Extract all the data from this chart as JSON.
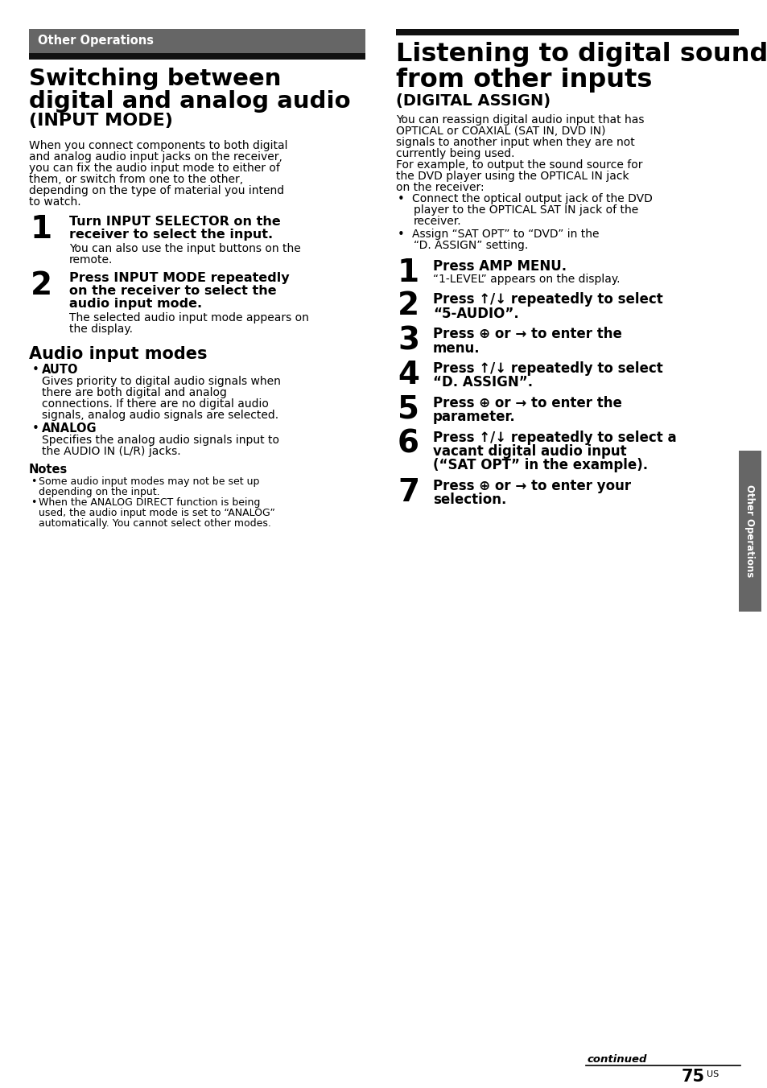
{
  "page_bg": "#ffffff",
  "header_bg_gray": "#666666",
  "header_bg_black": "#111111",
  "header_text_color": "#ffffff",
  "header_label": "Other Operations",
  "left_title_line1": "Switching between",
  "left_title_line2": "digital and analog audio",
  "left_title_sub": "(INPUT MODE)",
  "left_body": "When you connect components to both digital\nand analog audio input jacks on the receiver,\nyou can fix the audio input mode to either of\nthem, or switch from one to the other,\ndepending on the type of material you intend\nto watch.",
  "left_step1_num": "1",
  "left_step1_bold": "Turn INPUT SELECTOR on the\nreceiver to select the input.",
  "left_step1_body": "You can also use the input buttons on the\nremote.",
  "left_step2_num": "2",
  "left_step2_bold": "Press INPUT MODE repeatedly\non the receiver to select the\naudio input mode.",
  "left_step2_body": "The selected audio input mode appears on\nthe display.",
  "audio_modes_title": "Audio input modes",
  "bullet_auto_label": "AUTO",
  "bullet_auto_body": "Gives priority to digital audio signals when\nthere are both digital and analog\nconnections. If there are no digital audio\nsignals, analog audio signals are selected.",
  "bullet_analog_label": "ANALOG",
  "bullet_analog_body": "Specifies the analog audio signals input to\nthe AUDIO IN (L/R) jacks.",
  "notes_title": "Notes",
  "note1": "Some audio input modes may not be set up\ndepending on the input.",
  "note2": "When the ANALOG DIRECT function is being\nused, the audio input mode is set to “ANALOG”\nautomatically. You cannot select other modes.",
  "right_title_line1": "Listening to digital sound",
  "right_title_line2": "from other inputs",
  "right_title_sub": "(DIGITAL ASSIGN)",
  "right_intro_p1": "You can reassign digital audio input that has\nOPTICAL or COAXIAL (SAT IN, DVD IN)\nsignals to another input when they are not\ncurrently being used.",
  "right_intro_p2": "For example, to output the sound source for\nthe DVD player using the OPTICAL IN jack\non the receiver:",
  "right_bullet1": "Connect the optical output jack of the DVD\n  player to the OPTICAL SAT IN jack of the\n  receiver.",
  "right_bullet2": "Assign “SAT OPT” to “DVD” in the\n  “D. ASSIGN” setting.",
  "right_step1_num": "1",
  "right_step1_bold": "Press AMP MENU.",
  "right_step1_body": "“1-LEVEL” appears on the display.",
  "right_step2_num": "2",
  "right_step2_bold": "Press ↑/↓ repeatedly to select\n“5-AUDIO”.",
  "right_step3_num": "3",
  "right_step3_bold": "Press ⊕ or → to enter the\nmenu.",
  "right_step4_num": "4",
  "right_step4_bold": "Press ↑/↓ repeatedly to select\n“D. ASSIGN”.",
  "right_step5_num": "5",
  "right_step5_bold": "Press ⊕ or → to enter the\nparameter.",
  "right_step6_num": "6",
  "right_step6_bold": "Press ↑/↓ repeatedly to select a\nvacant digital audio input\n(“SAT OPT” in the example).",
  "right_step7_num": "7",
  "right_step7_bold": "Press ⊕ or → to enter your\nselection.",
  "sidebar_text": "Other Operations",
  "footer_continued": "continued",
  "footer_page": "75",
  "footer_page_sup": "US"
}
